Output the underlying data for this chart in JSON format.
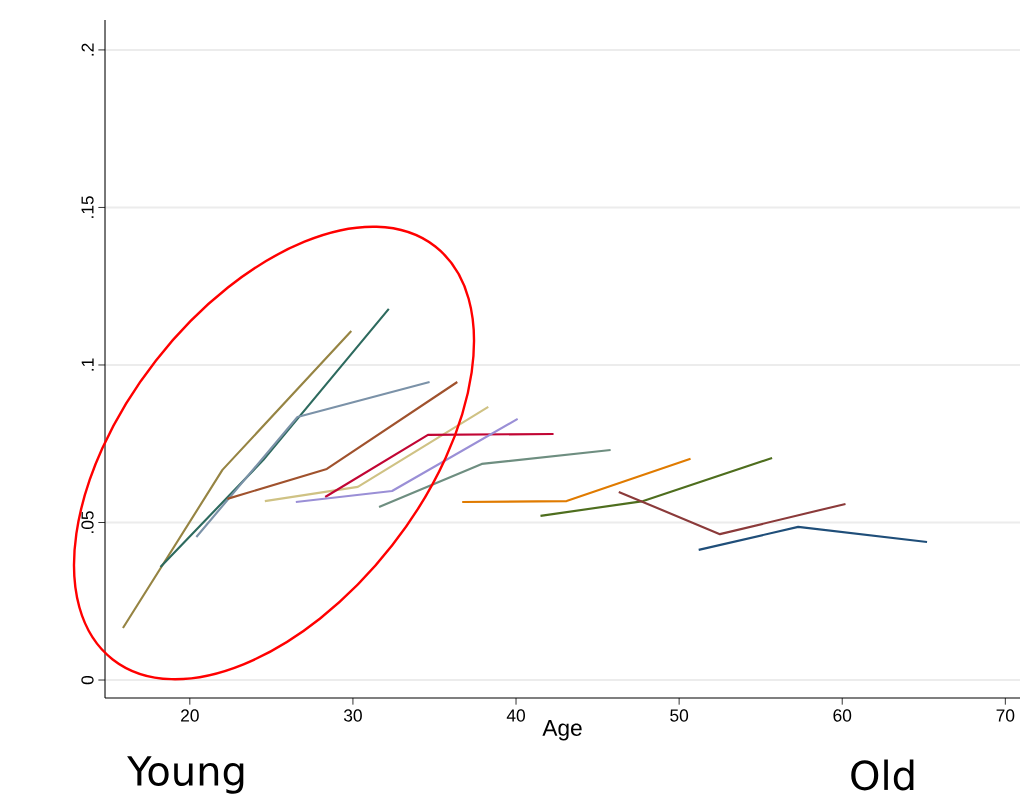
{
  "chart_data": {
    "type": "line",
    "xlabel": "Age",
    "xlim": [
      14.8,
      70.9
    ],
    "ylim": [
      -0.0057,
      0.2095
    ],
    "xticks": [
      20,
      30,
      40,
      50,
      60,
      70
    ],
    "yticks": [
      0,
      {
        "value": 0.05,
        "label": ".05"
      },
      {
        "value": 0.1,
        "label": ".1"
      },
      {
        "value": 0.15,
        "label": ".15"
      },
      {
        "value": 0.2,
        "label": ".2"
      }
    ],
    "grid": "y",
    "marker": "none",
    "line_style": "solid",
    "annotations": [
      "Young",
      "Old"
    ],
    "series": [
      {
        "color": "#968443",
        "x": [
          15.9,
          22.0,
          29.9
        ],
        "values": [
          0.0165,
          0.0667,
          0.1108
        ]
      },
      {
        "color": "#2d6a5e",
        "x": [
          18.2,
          24.5,
          32.2
        ],
        "values": [
          0.0359,
          0.0698,
          0.1178
        ]
      },
      {
        "color": "#7b92a8",
        "x": [
          20.4,
          26.6,
          34.7
        ],
        "values": [
          0.0454,
          0.0835,
          0.0946
        ]
      },
      {
        "color": "#a0522d",
        "x": [
          22.3,
          28.4,
          36.4
        ],
        "values": [
          0.0575,
          0.067,
          0.0946
        ]
      },
      {
        "color": "#cfc284",
        "x": [
          24.6,
          30.3,
          38.3
        ],
        "values": [
          0.0568,
          0.0613,
          0.0867
        ]
      },
      {
        "color": "#c10534",
        "x": [
          28.3,
          34.6,
          42.3
        ],
        "values": [
          0.0581,
          0.0778,
          0.0781
        ]
      },
      {
        "color": "#9a8fd6",
        "x": [
          26.5,
          32.4,
          40.1
        ],
        "values": [
          0.0565,
          0.06,
          0.0829
        ]
      },
      {
        "color": "#6e8e80",
        "x": [
          31.6,
          37.9,
          45.8
        ],
        "values": [
          0.0549,
          0.0686,
          0.073
        ]
      },
      {
        "color": "#e07b00",
        "x": [
          36.7,
          43.1,
          50.7
        ],
        "values": [
          0.0565,
          0.0568,
          0.0702
        ]
      },
      {
        "color": "#4e6e1e",
        "x": [
          41.5,
          47.8,
          55.7
        ],
        "values": [
          0.0521,
          0.0568,
          0.0705
        ]
      },
      {
        "color": "#8b3a3a",
        "x": [
          46.3,
          52.5,
          60.2
        ],
        "values": [
          0.0597,
          0.0463,
          0.0559
        ]
      },
      {
        "color": "#1f4e79",
        "x": [
          51.2,
          57.3,
          65.2
        ],
        "values": [
          0.0413,
          0.0486,
          0.0438
        ]
      }
    ]
  }
}
